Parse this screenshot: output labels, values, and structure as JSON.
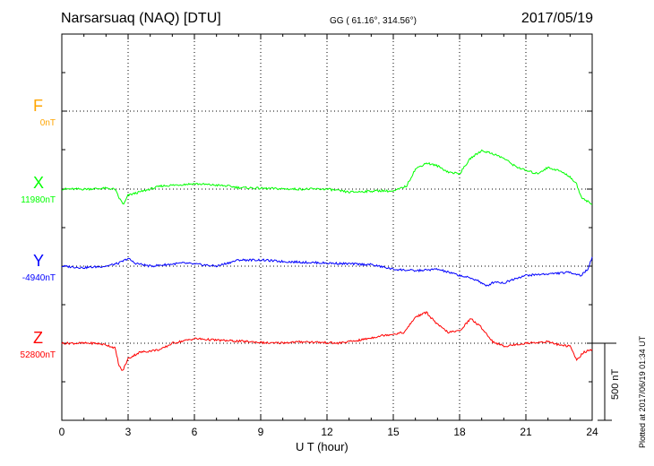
{
  "header": {
    "station": "Narsarsuaq (NAQ)  [DTU]",
    "coords": "GG ( 61.16°, 314.56°)",
    "date": "2017/05/19"
  },
  "plotted": "Plotted at 2017/06/19 01:34 UT",
  "scale_bar_label": "500 nT",
  "components": [
    {
      "name": "F",
      "baseline": "0nT",
      "color": "#ffa500"
    },
    {
      "name": "X",
      "baseline": "11980nT",
      "color": "#00ff00"
    },
    {
      "name": "Y",
      "baseline": "-4940nT",
      "color": "#0000ff"
    },
    {
      "name": "Z",
      "baseline": "52800nT",
      "color": "#ff0000"
    }
  ],
  "chart_data": {
    "type": "line",
    "title": "Narsarsuaq (NAQ)  [DTU]",
    "xlabel": "U T (hour)",
    "ylabel": "",
    "xlim": [
      0,
      24
    ],
    "x_ticks": [
      0,
      3,
      6,
      9,
      12,
      15,
      18,
      21,
      24
    ],
    "grid": true,
    "units": "nT",
    "scale_bar_nT": 500,
    "series": [
      {
        "name": "F",
        "color": "#ffa500",
        "baseline": 0,
        "points": []
      },
      {
        "name": "X",
        "color": "#00ff00",
        "baseline": 11980,
        "points": [
          [
            0.0,
            0
          ],
          [
            1.0,
            0
          ],
          [
            2.0,
            5
          ],
          [
            2.4,
            0
          ],
          [
            2.6,
            -60
          ],
          [
            2.8,
            -100
          ],
          [
            3.0,
            -40
          ],
          [
            3.5,
            -20
          ],
          [
            4.5,
            20
          ],
          [
            6.0,
            35
          ],
          [
            7.5,
            20
          ],
          [
            8.0,
            10
          ],
          [
            9.0,
            5
          ],
          [
            10.5,
            0
          ],
          [
            12.0,
            0
          ],
          [
            13.0,
            -20
          ],
          [
            14.5,
            -10
          ],
          [
            15.0,
            -15
          ],
          [
            15.6,
            20
          ],
          [
            16.0,
            130
          ],
          [
            16.5,
            170
          ],
          [
            17.0,
            150
          ],
          [
            17.5,
            110
          ],
          [
            18.0,
            100
          ],
          [
            18.5,
            200
          ],
          [
            19.0,
            250
          ],
          [
            19.5,
            230
          ],
          [
            20.0,
            200
          ],
          [
            20.5,
            150
          ],
          [
            21.0,
            120
          ],
          [
            21.5,
            100
          ],
          [
            22.0,
            140
          ],
          [
            22.5,
            120
          ],
          [
            23.0,
            80
          ],
          [
            23.3,
            30
          ],
          [
            23.5,
            -50
          ],
          [
            23.8,
            -80
          ],
          [
            24.0,
            -100
          ]
        ]
      },
      {
        "name": "Y",
        "color": "#0000ff",
        "baseline": -4940,
        "points": [
          [
            0.0,
            0
          ],
          [
            1.0,
            -10
          ],
          [
            2.0,
            0
          ],
          [
            2.6,
            20
          ],
          [
            3.0,
            50
          ],
          [
            3.3,
            20
          ],
          [
            4.0,
            0
          ],
          [
            5.5,
            20
          ],
          [
            7.0,
            0
          ],
          [
            8.0,
            40
          ],
          [
            9.0,
            40
          ],
          [
            10.0,
            30
          ],
          [
            12.0,
            20
          ],
          [
            13.0,
            15
          ],
          [
            14.0,
            10
          ],
          [
            15.0,
            -20
          ],
          [
            16.0,
            -30
          ],
          [
            17.0,
            -20
          ],
          [
            18.0,
            -60
          ],
          [
            18.8,
            -90
          ],
          [
            19.2,
            -130
          ],
          [
            19.6,
            -100
          ],
          [
            20.0,
            -110
          ],
          [
            20.5,
            -80
          ],
          [
            21.0,
            -60
          ],
          [
            22.0,
            -50
          ],
          [
            23.0,
            -40
          ],
          [
            23.5,
            -60
          ],
          [
            23.8,
            -20
          ],
          [
            24.0,
            60
          ]
        ]
      },
      {
        "name": "Z",
        "color": "#ff0000",
        "baseline": 52800,
        "points": [
          [
            0.0,
            0
          ],
          [
            1.5,
            0
          ],
          [
            2.0,
            -10
          ],
          [
            2.4,
            -30
          ],
          [
            2.6,
            -150
          ],
          [
            2.75,
            -180
          ],
          [
            3.0,
            -100
          ],
          [
            3.5,
            -60
          ],
          [
            4.5,
            -40
          ],
          [
            5.0,
            0
          ],
          [
            6.0,
            30
          ],
          [
            7.0,
            20
          ],
          [
            8.5,
            10
          ],
          [
            9.5,
            0
          ],
          [
            11.0,
            10
          ],
          [
            12.5,
            0
          ],
          [
            13.5,
            20
          ],
          [
            14.5,
            50
          ],
          [
            15.5,
            70
          ],
          [
            16.0,
            170
          ],
          [
            16.5,
            200
          ],
          [
            17.0,
            120
          ],
          [
            17.5,
            70
          ],
          [
            18.0,
            80
          ],
          [
            18.5,
            160
          ],
          [
            19.0,
            100
          ],
          [
            19.5,
            10
          ],
          [
            20.0,
            -20
          ],
          [
            21.0,
            0
          ],
          [
            22.0,
            10
          ],
          [
            22.5,
            -10
          ],
          [
            23.0,
            -20
          ],
          [
            23.3,
            -110
          ],
          [
            23.6,
            -60
          ],
          [
            24.0,
            -40
          ]
        ]
      }
    ]
  }
}
